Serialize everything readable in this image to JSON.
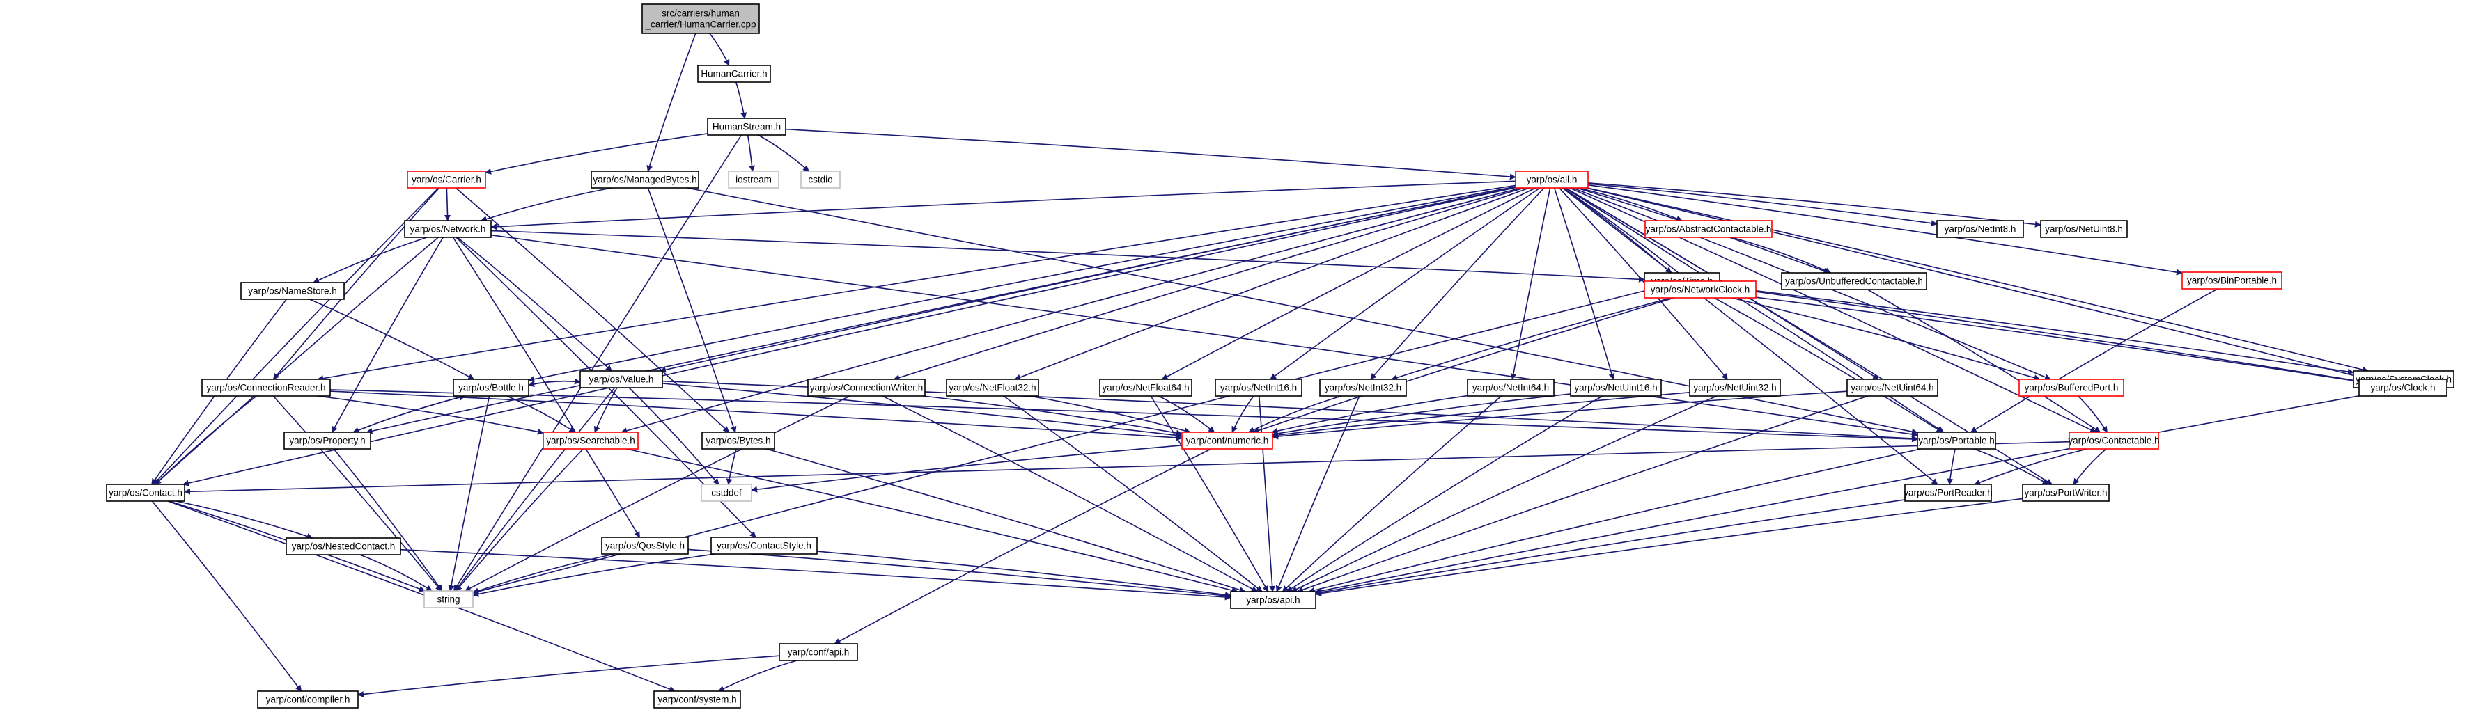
{
  "nodes": [
    {
      "id": "root",
      "lines": [
        "src/carriers/human",
        "_carrier/HumanCarrier.cpp"
      ],
      "style": "root"
    },
    {
      "id": "humancarrier",
      "lines": [
        "HumanCarrier.h"
      ],
      "style": "normal"
    },
    {
      "id": "humanstream",
      "lines": [
        "HumanStream.h"
      ],
      "style": "normal"
    },
    {
      "id": "carrier",
      "lines": [
        "yarp/os/Carrier.h"
      ],
      "style": "red"
    },
    {
      "id": "managedbytes",
      "lines": [
        "yarp/os/ManagedBytes.h"
      ],
      "style": "normal"
    },
    {
      "id": "iostream",
      "lines": [
        "iostream"
      ],
      "style": "plain"
    },
    {
      "id": "cstdio",
      "lines": [
        "cstdio"
      ],
      "style": "plain"
    },
    {
      "id": "all",
      "lines": [
        "yarp/os/all.h"
      ],
      "style": "red"
    },
    {
      "id": "network",
      "lines": [
        "yarp/os/Network.h"
      ],
      "style": "normal"
    },
    {
      "id": "abstractcontactable",
      "lines": [
        "yarp/os/AbstractContactable.h"
      ],
      "style": "red"
    },
    {
      "id": "netint8",
      "lines": [
        "yarp/os/NetInt8.h"
      ],
      "style": "normal"
    },
    {
      "id": "netuint8",
      "lines": [
        "yarp/os/NetUint8.h"
      ],
      "style": "normal"
    },
    {
      "id": "binportable",
      "lines": [
        "yarp/os/BinPortable.h"
      ],
      "style": "red"
    },
    {
      "id": "time",
      "lines": [
        "yarp/os/Time.h"
      ],
      "style": "normal"
    },
    {
      "id": "unbuffered",
      "lines": [
        "yarp/os/UnbufferedContactable.h"
      ],
      "style": "normal"
    },
    {
      "id": "namestore",
      "lines": [
        "yarp/os/NameStore.h"
      ],
      "style": "normal"
    },
    {
      "id": "value",
      "lines": [
        "yarp/os/Value.h"
      ],
      "style": "normal"
    },
    {
      "id": "networkclock",
      "lines": [
        "yarp/os/NetworkClock.h"
      ],
      "style": "red"
    },
    {
      "id": "systemclock",
      "lines": [
        "yarp/os/SystemClock.h"
      ],
      "style": "normal"
    },
    {
      "id": "connectionreader",
      "lines": [
        "yarp/os/ConnectionReader.h"
      ],
      "style": "normal"
    },
    {
      "id": "bottle",
      "lines": [
        "yarp/os/Bottle.h"
      ],
      "style": "normal"
    },
    {
      "id": "connectionwriter",
      "lines": [
        "yarp/os/ConnectionWriter.h"
      ],
      "style": "normal"
    },
    {
      "id": "netfloat32",
      "lines": [
        "yarp/os/NetFloat32.h"
      ],
      "style": "normal"
    },
    {
      "id": "netfloat64",
      "lines": [
        "yarp/os/NetFloat64.h"
      ],
      "style": "normal"
    },
    {
      "id": "netint16",
      "lines": [
        "yarp/os/NetInt16.h"
      ],
      "style": "normal"
    },
    {
      "id": "netint32",
      "lines": [
        "yarp/os/NetInt32.h"
      ],
      "style": "normal"
    },
    {
      "id": "netint64",
      "lines": [
        "yarp/os/NetInt64.h"
      ],
      "style": "normal"
    },
    {
      "id": "netuint16",
      "lines": [
        "yarp/os/NetUint16.h"
      ],
      "style": "normal"
    },
    {
      "id": "netuint32",
      "lines": [
        "yarp/os/NetUint32.h"
      ],
      "style": "normal"
    },
    {
      "id": "netuint64",
      "lines": [
        "yarp/os/NetUint64.h"
      ],
      "style": "normal"
    },
    {
      "id": "bufferedport",
      "lines": [
        "yarp/os/BufferedPort.h"
      ],
      "style": "red"
    },
    {
      "id": "clock",
      "lines": [
        "yarp/os/Clock.h"
      ],
      "style": "normal"
    },
    {
      "id": "property",
      "lines": [
        "yarp/os/Property.h"
      ],
      "style": "normal"
    },
    {
      "id": "searchable",
      "lines": [
        "yarp/os/Searchable.h"
      ],
      "style": "red"
    },
    {
      "id": "bytes",
      "lines": [
        "yarp/os/Bytes.h"
      ],
      "style": "normal"
    },
    {
      "id": "numeric",
      "lines": [
        "yarp/conf/numeric.h"
      ],
      "style": "red"
    },
    {
      "id": "portable",
      "lines": [
        "yarp/os/Portable.h"
      ],
      "style": "normal"
    },
    {
      "id": "contactable",
      "lines": [
        "yarp/os/Contactable.h"
      ],
      "style": "red"
    },
    {
      "id": "contact",
      "lines": [
        "yarp/os/Contact.h"
      ],
      "style": "normal"
    },
    {
      "id": "cstddef",
      "lines": [
        "cstddef"
      ],
      "style": "plain"
    },
    {
      "id": "portreader",
      "lines": [
        "yarp/os/PortReader.h"
      ],
      "style": "normal"
    },
    {
      "id": "portwriter",
      "lines": [
        "yarp/os/PortWriter.h"
      ],
      "style": "normal"
    },
    {
      "id": "nestedcontact",
      "lines": [
        "yarp/os/NestedContact.h"
      ],
      "style": "normal"
    },
    {
      "id": "qosstyle",
      "lines": [
        "yarp/os/QosStyle.h"
      ],
      "style": "normal"
    },
    {
      "id": "contactstyle",
      "lines": [
        "yarp/os/ContactStyle.h"
      ],
      "style": "normal"
    },
    {
      "id": "string",
      "lines": [
        "string"
      ],
      "style": "plain"
    },
    {
      "id": "osapi",
      "lines": [
        "yarp/os/api.h"
      ],
      "style": "normal"
    },
    {
      "id": "confapi",
      "lines": [
        "yarp/conf/api.h"
      ],
      "style": "normal"
    },
    {
      "id": "compiler",
      "lines": [
        "yarp/conf/compiler.h"
      ],
      "style": "normal"
    },
    {
      "id": "system",
      "lines": [
        "yarp/conf/system.h"
      ],
      "style": "normal"
    }
  ],
  "edges": [
    [
      "root",
      "humancarrier"
    ],
    [
      "root",
      "managedbytes"
    ],
    [
      "humancarrier",
      "humanstream"
    ],
    [
      "humanstream",
      "carrier"
    ],
    [
      "humanstream",
      "iostream"
    ],
    [
      "humanstream",
      "cstdio"
    ],
    [
      "humanstream",
      "all"
    ],
    [
      "humanstream",
      "string"
    ],
    [
      "carrier",
      "network"
    ],
    [
      "carrier",
      "bytes"
    ],
    [
      "carrier",
      "connectionreader"
    ],
    [
      "carrier",
      "contact"
    ],
    [
      "managedbytes",
      "network"
    ],
    [
      "managedbytes",
      "bytes"
    ],
    [
      "managedbytes",
      "portable"
    ],
    [
      "all",
      "network"
    ],
    [
      "all",
      "abstractcontactable"
    ],
    [
      "all",
      "netint8"
    ],
    [
      "all",
      "netuint8"
    ],
    [
      "all",
      "binportable"
    ],
    [
      "all",
      "time"
    ],
    [
      "all",
      "unbuffered"
    ],
    [
      "all",
      "value"
    ],
    [
      "all",
      "networkclock"
    ],
    [
      "all",
      "systemclock"
    ],
    [
      "all",
      "clock"
    ],
    [
      "all",
      "connectionreader"
    ],
    [
      "all",
      "bottle"
    ],
    [
      "all",
      "connectionwriter"
    ],
    [
      "all",
      "netfloat32"
    ],
    [
      "all",
      "netfloat64"
    ],
    [
      "all",
      "netint16"
    ],
    [
      "all",
      "netint32"
    ],
    [
      "all",
      "netint64"
    ],
    [
      "all",
      "netuint16"
    ],
    [
      "all",
      "netuint32"
    ],
    [
      "all",
      "netuint64"
    ],
    [
      "all",
      "bufferedport"
    ],
    [
      "all",
      "portable"
    ],
    [
      "all",
      "contactable"
    ],
    [
      "all",
      "searchable"
    ],
    [
      "all",
      "portreader"
    ],
    [
      "all",
      "portwriter"
    ],
    [
      "all",
      "contact"
    ],
    [
      "all",
      "property"
    ],
    [
      "network",
      "namestore"
    ],
    [
      "network",
      "value"
    ],
    [
      "network",
      "time"
    ],
    [
      "network",
      "contact"
    ],
    [
      "network",
      "property"
    ],
    [
      "network",
      "portable"
    ],
    [
      "network",
      "qosstyle"
    ],
    [
      "network",
      "contactstyle"
    ],
    [
      "abstractcontactable",
      "unbuffered"
    ],
    [
      "unbuffered",
      "contactable"
    ],
    [
      "time",
      "networkclock"
    ],
    [
      "time",
      "systemclock"
    ],
    [
      "time",
      "clock"
    ],
    [
      "time",
      "string"
    ],
    [
      "namestore",
      "bottle"
    ],
    [
      "namestore",
      "contact"
    ],
    [
      "value",
      "bottle"
    ],
    [
      "value",
      "searchable"
    ],
    [
      "value",
      "numeric"
    ],
    [
      "value",
      "portable"
    ],
    [
      "value",
      "string"
    ],
    [
      "value",
      "cstddef"
    ],
    [
      "networkclock",
      "bufferedport"
    ],
    [
      "networkclock",
      "netint32"
    ],
    [
      "networkclock",
      "numeric"
    ],
    [
      "networkclock",
      "portable"
    ],
    [
      "networkclock",
      "clock"
    ],
    [
      "systemclock",
      "clock"
    ],
    [
      "binportable",
      "portable"
    ],
    [
      "bufferedport",
      "contactable"
    ],
    [
      "connectionreader",
      "contact"
    ],
    [
      "connectionreader",
      "searchable"
    ],
    [
      "connectionreader",
      "numeric"
    ],
    [
      "connectionreader",
      "portable"
    ],
    [
      "connectionreader",
      "string"
    ],
    [
      "bottle",
      "value"
    ],
    [
      "bottle",
      "property"
    ],
    [
      "bottle",
      "searchable"
    ],
    [
      "bottle",
      "string"
    ],
    [
      "property",
      "bottle"
    ],
    [
      "property",
      "string"
    ],
    [
      "connectionwriter",
      "numeric"
    ],
    [
      "connectionwriter",
      "string"
    ],
    [
      "connectionwriter",
      "osapi"
    ],
    [
      "netfloat32",
      "numeric"
    ],
    [
      "netfloat32",
      "osapi"
    ],
    [
      "netfloat64",
      "numeric"
    ],
    [
      "netfloat64",
      "osapi"
    ],
    [
      "netint16",
      "numeric"
    ],
    [
      "netint16",
      "osapi"
    ],
    [
      "netint32",
      "numeric"
    ],
    [
      "netint32",
      "osapi"
    ],
    [
      "netint64",
      "numeric"
    ],
    [
      "netint64",
      "osapi"
    ],
    [
      "netuint16",
      "numeric"
    ],
    [
      "netuint16",
      "osapi"
    ],
    [
      "netuint32",
      "numeric"
    ],
    [
      "netuint32",
      "osapi"
    ],
    [
      "netuint64",
      "numeric"
    ],
    [
      "netuint64",
      "osapi"
    ],
    [
      "searchable",
      "string"
    ],
    [
      "searchable",
      "osapi"
    ],
    [
      "bytes",
      "cstddef"
    ],
    [
      "bytes",
      "osapi"
    ],
    [
      "numeric",
      "cstddef"
    ],
    [
      "numeric",
      "confapi"
    ],
    [
      "portable",
      "portreader"
    ],
    [
      "portable",
      "portwriter"
    ],
    [
      "portable",
      "osapi"
    ],
    [
      "contactable",
      "portreader"
    ],
    [
      "contactable",
      "portwriter"
    ],
    [
      "contactable",
      "contact"
    ],
    [
      "clock",
      "osapi"
    ],
    [
      "contact",
      "nestedcontact"
    ],
    [
      "contact",
      "string"
    ],
    [
      "contact",
      "compiler"
    ],
    [
      "contact",
      "system"
    ],
    [
      "nestedcontact",
      "string"
    ],
    [
      "nestedcontact",
      "osapi"
    ],
    [
      "qosstyle",
      "string"
    ],
    [
      "qosstyle",
      "osapi"
    ],
    [
      "contactstyle",
      "string"
    ],
    [
      "contactstyle",
      "osapi"
    ],
    [
      "portreader",
      "osapi"
    ],
    [
      "portwriter",
      "osapi"
    ],
    [
      "confapi",
      "compiler"
    ],
    [
      "confapi",
      "system"
    ]
  ]
}
